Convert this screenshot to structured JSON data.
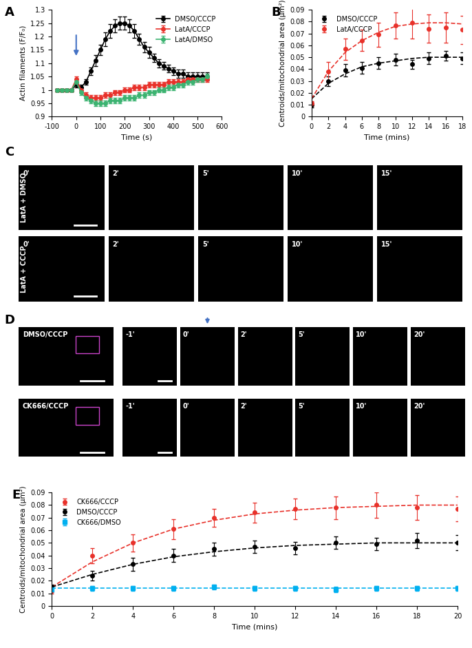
{
  "chart_data": [
    {
      "label": "A",
      "type": "line",
      "x_label": "Time (s)",
      "y_label": "Actin filaments (F/F₀)",
      "xlim": [
        -100,
        600
      ],
      "xticks": [
        -100,
        0,
        100,
        200,
        300,
        400,
        500,
        600
      ],
      "ylim": [
        0.9,
        1.3
      ],
      "yticks": [
        0.9,
        0.95,
        1,
        1.05,
        1.1,
        1.15,
        1.2,
        1.25,
        1.3
      ],
      "legend": "upper right",
      "arrow": {
        "x": 0,
        "color": "#4472c4"
      },
      "x": [
        -80,
        -60,
        -40,
        -20,
        0,
        20,
        40,
        60,
        80,
        100,
        120,
        140,
        160,
        180,
        200,
        220,
        240,
        260,
        280,
        300,
        320,
        340,
        360,
        380,
        400,
        420,
        440,
        460,
        480,
        500,
        520,
        540
      ],
      "series": [
        {
          "name": "DMSO/CCCP",
          "color": "#000000",
          "marker": "circle",
          "line_style": "solid",
          "values": [
            1.0,
            1.0,
            1.0,
            1.0,
            1.02,
            1.01,
            1.03,
            1.07,
            1.11,
            1.15,
            1.19,
            1.22,
            1.24,
            1.25,
            1.25,
            1.24,
            1.22,
            1.19,
            1.16,
            1.14,
            1.12,
            1.1,
            1.09,
            1.08,
            1.07,
            1.06,
            1.06,
            1.05,
            1.05,
            1.05,
            1.05,
            1.05
          ],
          "errors": [
            0.005,
            0.005,
            0.005,
            0.005,
            0.01,
            0.01,
            0.01,
            0.015,
            0.02,
            0.02,
            0.025,
            0.025,
            0.025,
            0.025,
            0.025,
            0.025,
            0.025,
            0.02,
            0.02,
            0.02,
            0.015,
            0.015,
            0.015,
            0.015,
            0.015,
            0.015,
            0.015,
            0.015,
            0.015,
            0.015,
            0.015,
            0.015
          ]
        },
        {
          "name": "LatA/CCCP",
          "color": "#e8312a",
          "marker": "circle",
          "line_style": "solid",
          "values": [
            1.0,
            1.0,
            1.0,
            1.0,
            1.04,
            1.0,
            0.98,
            0.97,
            0.97,
            0.97,
            0.98,
            0.98,
            0.99,
            0.99,
            1.0,
            1.0,
            1.01,
            1.01,
            1.01,
            1.02,
            1.02,
            1.02,
            1.02,
            1.03,
            1.03,
            1.03,
            1.03,
            1.04,
            1.04,
            1.04,
            1.04,
            1.04
          ],
          "errors": [
            0.005,
            0.005,
            0.005,
            0.005,
            0.01,
            0.01,
            0.01,
            0.01,
            0.01,
            0.01,
            0.01,
            0.01,
            0.01,
            0.01,
            0.01,
            0.01,
            0.01,
            0.01,
            0.01,
            0.01,
            0.01,
            0.01,
            0.01,
            0.01,
            0.01,
            0.01,
            0.01,
            0.01,
            0.01,
            0.01,
            0.01,
            0.01
          ]
        },
        {
          "name": "LatA/DMSO",
          "color": "#3cb371",
          "marker": "circle",
          "line_style": "solid",
          "values": [
            1.0,
            1.0,
            1.0,
            1.0,
            1.03,
            0.99,
            0.97,
            0.96,
            0.95,
            0.95,
            0.95,
            0.96,
            0.96,
            0.96,
            0.97,
            0.97,
            0.97,
            0.98,
            0.98,
            0.99,
            0.99,
            1.0,
            1.0,
            1.01,
            1.01,
            1.02,
            1.02,
            1.03,
            1.03,
            1.04,
            1.04,
            1.05
          ],
          "errors": [
            0.005,
            0.005,
            0.005,
            0.005,
            0.01,
            0.01,
            0.01,
            0.01,
            0.01,
            0.01,
            0.01,
            0.01,
            0.01,
            0.01,
            0.01,
            0.01,
            0.01,
            0.01,
            0.01,
            0.01,
            0.01,
            0.01,
            0.01,
            0.01,
            0.01,
            0.01,
            0.01,
            0.01,
            0.01,
            0.01,
            0.01,
            0.01
          ]
        }
      ]
    },
    {
      "label": "B",
      "type": "scatter",
      "x_label": "Time (mins)",
      "y_label": "Centroids/mitochondrial area (μm²)",
      "xlim": [
        0,
        18
      ],
      "xticks": [
        0,
        2,
        4,
        6,
        8,
        10,
        12,
        14,
        16,
        18
      ],
      "ylim": [
        0,
        0.09
      ],
      "yticks": [
        0,
        0.01,
        0.02,
        0.03,
        0.04,
        0.05,
        0.06,
        0.07,
        0.08,
        0.09
      ],
      "legend": "upper left",
      "x": [
        0,
        2,
        4,
        6,
        8,
        10,
        12,
        14,
        16,
        18
      ],
      "series": [
        {
          "name": "DMSO/CCCP",
          "color": "#000000",
          "marker": "circle",
          "line_style": "none",
          "values": [
            0.01,
            0.03,
            0.039,
            0.041,
            0.045,
            0.048,
            0.044,
            0.049,
            0.051,
            0.049
          ],
          "errors": [
            0.002,
            0.004,
            0.005,
            0.005,
            0.005,
            0.005,
            0.004,
            0.005,
            0.004,
            0.005
          ],
          "fit": [
            0.015,
            0.028,
            0.036,
            0.042,
            0.045,
            0.047,
            0.049,
            0.05,
            0.05,
            0.05
          ]
        },
        {
          "name": "LatA/CCCP",
          "color": "#e8312a",
          "marker": "circle",
          "line_style": "none",
          "values": [
            0.011,
            0.038,
            0.057,
            0.064,
            0.069,
            0.077,
            0.079,
            0.074,
            0.075,
            0.073
          ],
          "errors": [
            0.002,
            0.008,
            0.009,
            0.009,
            0.01,
            0.011,
            0.013,
            0.012,
            0.013,
            0.012
          ],
          "fit": [
            0.015,
            0.038,
            0.054,
            0.064,
            0.071,
            0.076,
            0.078,
            0.079,
            0.079,
            0.078
          ]
        }
      ]
    },
    {
      "label": "E",
      "type": "scatter",
      "x_label": "Time (mins)",
      "y_label": "Centroids/mitochondrial area (μm²)",
      "xlim": [
        0,
        20
      ],
      "xticks": [
        0,
        2,
        4,
        6,
        8,
        10,
        12,
        14,
        16,
        18,
        20
      ],
      "ylim": [
        0,
        0.09
      ],
      "yticks": [
        0,
        0.01,
        0.02,
        0.03,
        0.04,
        0.05,
        0.06,
        0.07,
        0.08,
        0.09
      ],
      "legend": "upper left",
      "x": [
        0,
        2,
        4,
        6,
        8,
        10,
        12,
        14,
        16,
        18,
        20
      ],
      "series": [
        {
          "name": "CK666/CCCP",
          "color": "#e8312a",
          "marker": "circle",
          "line_style": "none",
          "values": [
            0.012,
            0.04,
            0.05,
            0.061,
            0.07,
            0.074,
            0.077,
            0.078,
            0.08,
            0.078,
            0.077
          ],
          "errors": [
            0.002,
            0.006,
            0.007,
            0.008,
            0.007,
            0.008,
            0.008,
            0.009,
            0.01,
            0.01,
            0.01
          ],
          "fit": [
            0.015,
            0.035,
            0.05,
            0.061,
            0.068,
            0.073,
            0.076,
            0.078,
            0.079,
            0.08,
            0.08
          ]
        },
        {
          "name": "DMSO/CCCP",
          "color": "#000000",
          "marker": "circle",
          "line_style": "none",
          "values": [
            0.015,
            0.024,
            0.033,
            0.04,
            0.045,
            0.047,
            0.046,
            0.05,
            0.049,
            0.052,
            0.05
          ],
          "errors": [
            0.002,
            0.004,
            0.005,
            0.005,
            0.005,
            0.005,
            0.005,
            0.005,
            0.005,
            0.006,
            0.006
          ],
          "fit": [
            0.015,
            0.025,
            0.033,
            0.039,
            0.043,
            0.046,
            0.048,
            0.049,
            0.05,
            0.05,
            0.05
          ]
        },
        {
          "name": "CK666/DMSO",
          "color": "#00b0f0",
          "marker": "square",
          "line_style": "none",
          "values": [
            0.013,
            0.014,
            0.014,
            0.014,
            0.015,
            0.014,
            0.014,
            0.013,
            0.014,
            0.014,
            0.014
          ],
          "errors": [
            0.002,
            0.002,
            0.002,
            0.002,
            0.002,
            0.002,
            0.002,
            0.002,
            0.002,
            0.002,
            0.002
          ],
          "fit": [
            0.014,
            0.014,
            0.014,
            0.014,
            0.014,
            0.014,
            0.014,
            0.014,
            0.014,
            0.014,
            0.014
          ]
        }
      ]
    }
  ],
  "image_panels": [
    {
      "label": "C",
      "rows": [
        {
          "name": "LatA + DMSO",
          "times": [
            "0'",
            "2'",
            "5'",
            "10'",
            "15'"
          ]
        },
        {
          "name": "LatA + CCCP",
          "times": [
            "0'",
            "2'",
            "5'",
            "10'",
            "15'"
          ]
        }
      ]
    },
    {
      "label": "D",
      "rows": [
        {
          "name": "DMSO/CCCP",
          "times": [
            "-1'",
            "0'",
            "2'",
            "5'",
            "10'",
            "20'"
          ]
        },
        {
          "name": "CK666/CCCP",
          "times": [
            "-1'",
            "0'",
            "2'",
            "5'",
            "10'",
            "20'"
          ]
        }
      ]
    }
  ]
}
